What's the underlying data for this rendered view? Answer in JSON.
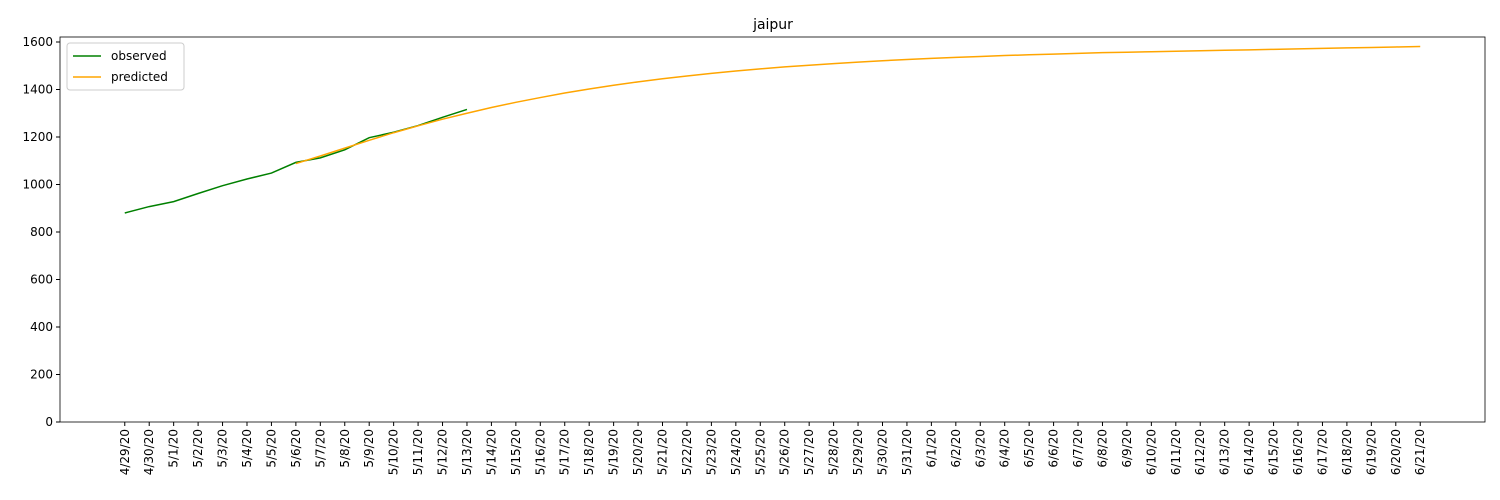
{
  "chart_data": {
    "type": "line",
    "title": "jaipur",
    "categories": [
      "4/29/20",
      "4/30/20",
      "5/1/20",
      "5/2/20",
      "5/3/20",
      "5/4/20",
      "5/5/20",
      "5/6/20",
      "5/7/20",
      "5/8/20",
      "5/9/20",
      "5/10/20",
      "5/11/20",
      "5/12/20",
      "5/13/20",
      "5/14/20",
      "5/15/20",
      "5/16/20",
      "5/17/20",
      "5/18/20",
      "5/19/20",
      "5/20/20",
      "5/21/20",
      "5/22/20",
      "5/23/20",
      "5/24/20",
      "5/25/20",
      "5/26/20",
      "5/27/20",
      "5/28/20",
      "5/29/20",
      "5/30/20",
      "5/31/20",
      "6/1/20",
      "6/2/20",
      "6/3/20",
      "6/4/20",
      "6/5/20",
      "6/6/20",
      "6/7/20",
      "6/8/20",
      "6/9/20",
      "6/10/20",
      "6/11/20",
      "6/12/20",
      "6/13/20",
      "6/14/20",
      "6/15/20",
      "6/16/20",
      "6/17/20",
      "6/18/20",
      "6/19/20",
      "6/20/20",
      "6/21/20"
    ],
    "series": [
      {
        "name": "observed",
        "color": "#008000",
        "values": [
          880,
          907,
          928,
          962,
          995,
          1023,
          1048,
          1093,
          1112,
          1146,
          1197,
          1220,
          1248,
          1283,
          1316,
          null,
          null,
          null,
          null,
          null,
          null,
          null,
          null,
          null,
          null,
          null,
          null,
          null,
          null,
          null,
          null,
          null,
          null,
          null,
          null,
          null,
          null,
          null,
          null,
          null,
          null,
          null,
          null,
          null,
          null,
          null,
          null,
          null,
          null,
          null,
          null,
          null,
          null,
          null
        ]
      },
      {
        "name": "predicted",
        "color": "#ffa500",
        "values": [
          null,
          null,
          null,
          null,
          null,
          null,
          null,
          1088,
          1120,
          1153,
          1186,
          1218,
          1247,
          1275,
          1300,
          1324,
          1346,
          1366,
          1385,
          1402,
          1418,
          1432,
          1445,
          1457,
          1468,
          1478,
          1487,
          1495,
          1502,
          1509,
          1515,
          1521,
          1526,
          1531,
          1535,
          1539,
          1543,
          1546,
          1549,
          1552,
          1555,
          1557,
          1559,
          1561,
          1563,
          1565,
          1567,
          1569,
          1571,
          1573,
          1575,
          1577,
          1579,
          1581
        ]
      }
    ],
    "ylim": [
      0,
      1621
    ],
    "yticks": [
      0,
      200,
      400,
      600,
      800,
      1000,
      1200,
      1400,
      1600
    ],
    "legend": "upper left",
    "grid": false
  }
}
